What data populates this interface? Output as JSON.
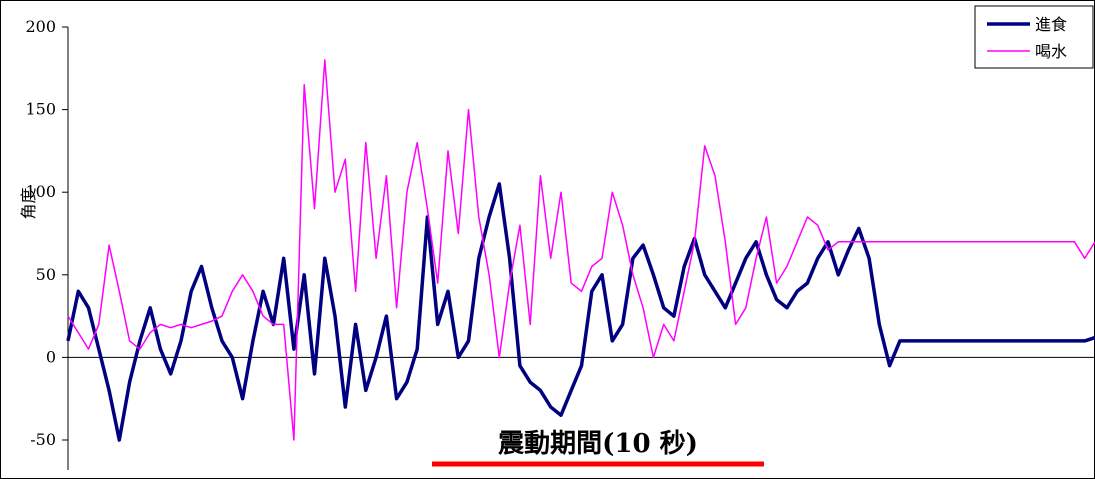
{
  "chart_data": {
    "type": "line",
    "title": "",
    "xlabel": "",
    "ylabel": "角度",
    "ylim": [
      -50,
      200
    ],
    "xlim": [
      0,
      100
    ],
    "yticks": [
      200,
      150,
      100,
      50,
      0,
      -50
    ],
    "grid": false,
    "legend_position": "top-right",
    "series": [
      {
        "name": "進食",
        "color": "#000080",
        "x": [
          0,
          1,
          2,
          3,
          4,
          5,
          6,
          7,
          8,
          9,
          10,
          11,
          12,
          13,
          14,
          15,
          16,
          17,
          18,
          19,
          20,
          21,
          22,
          23,
          24,
          25,
          26,
          27,
          28,
          29,
          30,
          31,
          32,
          33,
          34,
          35,
          36,
          37,
          38,
          39,
          40,
          41,
          42,
          43,
          44,
          45,
          46,
          47,
          48,
          49,
          50,
          51,
          52,
          53,
          54,
          55,
          56,
          57,
          58,
          59,
          60,
          61,
          62,
          63,
          64,
          65,
          66,
          67,
          68,
          69,
          70,
          71,
          72,
          73,
          74,
          75,
          76,
          77,
          78,
          79,
          80,
          81,
          82,
          83,
          84,
          85,
          86,
          87,
          88,
          89,
          90,
          91,
          92,
          93,
          94,
          95,
          96,
          97,
          98,
          99,
          100
        ],
        "values": [
          10,
          40,
          30,
          5,
          -20,
          -50,
          -15,
          10,
          30,
          5,
          -10,
          10,
          40,
          55,
          30,
          10,
          0,
          -25,
          10,
          40,
          20,
          60,
          5,
          50,
          -10,
          60,
          25,
          -30,
          20,
          -20,
          0,
          25,
          -25,
          -15,
          5,
          85,
          20,
          40,
          0,
          10,
          60,
          85,
          105,
          60,
          -5,
          -15,
          -20,
          -30,
          -35,
          -20,
          -5,
          40,
          50,
          10,
          20,
          60,
          68,
          50,
          30,
          25,
          55,
          72,
          50,
          40,
          30,
          45,
          60,
          70,
          50,
          35,
          30,
          40,
          45,
          60,
          70,
          50,
          65,
          78,
          60,
          20,
          -5,
          10,
          10,
          10,
          10,
          10,
          10,
          10,
          10,
          10,
          10,
          10,
          10,
          10,
          10,
          10,
          10,
          10,
          10,
          10,
          12
        ]
      },
      {
        "name": "喝水",
        "color": "#ff00ff",
        "x": [
          0,
          1,
          2,
          3,
          4,
          5,
          6,
          7,
          8,
          9,
          10,
          11,
          12,
          13,
          14,
          15,
          16,
          17,
          18,
          19,
          20,
          21,
          22,
          23,
          24,
          25,
          26,
          27,
          28,
          29,
          30,
          31,
          32,
          33,
          34,
          35,
          36,
          37,
          38,
          39,
          40,
          41,
          42,
          43,
          44,
          45,
          46,
          47,
          48,
          49,
          50,
          51,
          52,
          53,
          54,
          55,
          56,
          57,
          58,
          59,
          60,
          61,
          62,
          63,
          64,
          65,
          66,
          67,
          68,
          69,
          70,
          71,
          72,
          73,
          74,
          75,
          76,
          77,
          78,
          79,
          80,
          81,
          82,
          83,
          84,
          85,
          86,
          87,
          88,
          89,
          90,
          91,
          92,
          93,
          94,
          95,
          96,
          97,
          98,
          99,
          100
        ],
        "values": [
          25,
          15,
          5,
          20,
          68,
          40,
          10,
          5,
          15,
          20,
          18,
          20,
          18,
          20,
          22,
          25,
          40,
          50,
          40,
          25,
          20,
          20,
          -50,
          165,
          90,
          180,
          100,
          120,
          40,
          130,
          60,
          110,
          30,
          100,
          130,
          90,
          45,
          125,
          75,
          150,
          85,
          50,
          0,
          45,
          80,
          20,
          110,
          60,
          100,
          45,
          40,
          55,
          60,
          100,
          80,
          50,
          30,
          0,
          20,
          10,
          40,
          70,
          128,
          110,
          70,
          20,
          30,
          60,
          85,
          45,
          55,
          70,
          85,
          80,
          65,
          70,
          70,
          70,
          70,
          70,
          70,
          70,
          70,
          70,
          70,
          70,
          70,
          70,
          70,
          70,
          70,
          70,
          70,
          70,
          70,
          70,
          70,
          70,
          70,
          60,
          70
        ]
      }
    ],
    "annotation": {
      "text": "震動期間(10 秒)",
      "x_start": 0,
      "x_end": 0,
      "bar_color": "#ff0000"
    }
  }
}
